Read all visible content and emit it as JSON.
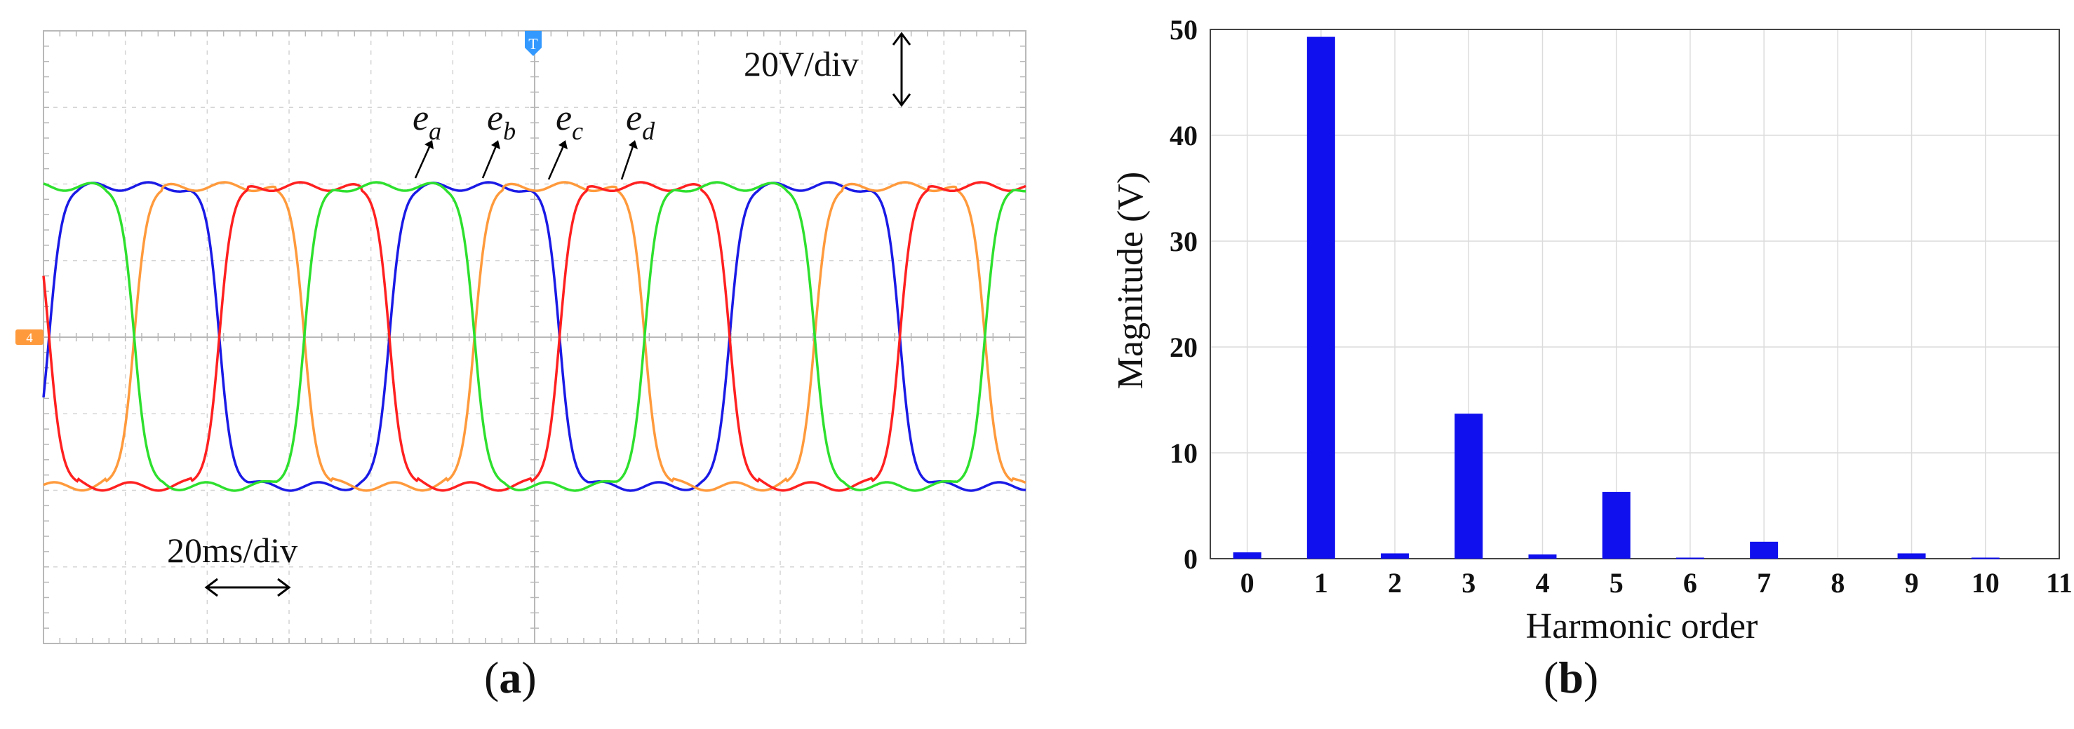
{
  "panel_a": {
    "caption": "a",
    "volt_scale": "20V/div",
    "time_scale": "20ms/div",
    "trigger_marker": "T",
    "channel_marker": "4",
    "trace_labels": [
      {
        "base": "e",
        "sub": "a",
        "color": "#1a1ae6"
      },
      {
        "base": "e",
        "sub": "b",
        "color": "#ff9a3c"
      },
      {
        "base": "e",
        "sub": "c",
        "color": "#ff2020"
      },
      {
        "base": "e",
        "sub": "d",
        "color": "#2ee02e"
      }
    ],
    "colors": {
      "grid": "#d4d4d4",
      "axis": "#b8b8b8",
      "marker": "#3399ff",
      "channel_marker": "#ff9a3c"
    }
  },
  "chart_data": {
    "type": "bar",
    "title": "",
    "caption": "b",
    "xlabel": "Harmonic order",
    "ylabel": "Magnitude (V)",
    "categories": [
      "0",
      "1",
      "2",
      "3",
      "4",
      "5",
      "6",
      "7",
      "8",
      "9",
      "10",
      "11"
    ],
    "values": [
      0.6,
      49.3,
      0.5,
      13.7,
      0.4,
      6.3,
      0.1,
      1.6,
      0,
      0.5,
      0.1,
      0
    ],
    "ylim": [
      0,
      50
    ],
    "yticks": [
      0,
      10,
      20,
      30,
      40,
      50
    ],
    "grid": true,
    "bar_color": "#1010ee"
  }
}
